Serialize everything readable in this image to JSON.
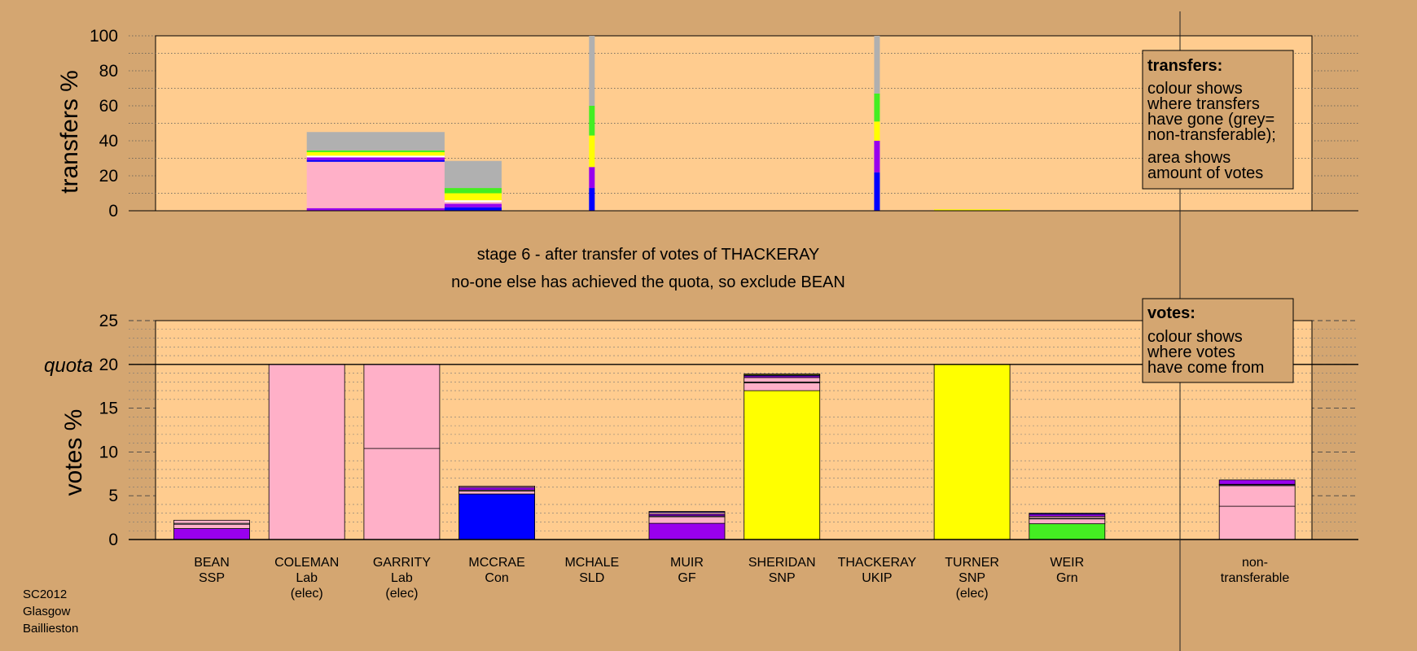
{
  "chart_data": [
    {
      "type": "bar",
      "stacked": true,
      "ylabel": "transfers %",
      "ylim": [
        0,
        100
      ],
      "yticks": [
        "100",
        "80",
        "60",
        "40",
        "20",
        "0"
      ],
      "grid": "dotted",
      "legend_box": {
        "title": "transfers:",
        "lines": [
          "colour shows",
          "where transfers",
          "have gone (grey=",
          "non-transferable);",
          "area shows",
          "amount of votes"
        ]
      },
      "bars": [
        {
          "x_from": 2,
          "x_to": 3.45,
          "segments": [
            {
              "color": "#9900ee",
              "value": 1.5
            },
            {
              "color": "#ffb0c8",
              "value": 26.5
            },
            {
              "color": "#0000ff",
              "value": 1
            },
            {
              "color": "#9900ee",
              "value": 1.5
            },
            {
              "color": "#ffffff",
              "value": 1
            },
            {
              "color": "#ffff00",
              "value": 2
            },
            {
              "color": "#44ee22",
              "value": 1
            },
            {
              "color": "#b0b0b0",
              "value": 10.5
            }
          ]
        },
        {
          "x_from": 3.45,
          "x_to": 4.05,
          "segments": [
            {
              "color": "#0000ff",
              "value": 2
            },
            {
              "color": "#9900ee",
              "value": 2
            },
            {
              "color": "#ffb0c8",
              "value": 1
            },
            {
              "color": "#ffffff",
              "value": 1
            },
            {
              "color": "#ffff00",
              "value": 4
            },
            {
              "color": "#44ee22",
              "value": 3
            },
            {
              "color": "#b0b0b0",
              "value": 15.5
            }
          ]
        },
        {
          "x_from": 4.97,
          "x_to": 5.03,
          "segments": [
            {
              "color": "#0000ff",
              "value": 13
            },
            {
              "color": "#9900ee",
              "value": 12
            },
            {
              "color": "#ffff00",
              "value": 18
            },
            {
              "color": "#44ee22",
              "value": 17
            },
            {
              "color": "#b0b0b0",
              "value": 40
            }
          ]
        },
        {
          "x_from": 7.97,
          "x_to": 8.03,
          "segments": [
            {
              "color": "#0000ff",
              "value": 22
            },
            {
              "color": "#9900ee",
              "value": 18
            },
            {
              "color": "#ffff00",
              "value": 11
            },
            {
              "color": "#44ee22",
              "value": 16
            },
            {
              "color": "#b0b0b0",
              "value": 33
            }
          ]
        },
        {
          "x_from": 8.6,
          "x_to": 9.4,
          "segments": [
            {
              "color": "#ffff00",
              "value": 0.8
            }
          ]
        }
      ]
    },
    {
      "type": "bar",
      "stacked": true,
      "ylabel": "votes %",
      "ylim": [
        0,
        25
      ],
      "yticks": [
        "25",
        "20",
        "15",
        "10",
        "5",
        "0"
      ],
      "quota": 20,
      "quota_label": "quota",
      "grid": "dashed",
      "legend_box": {
        "title": "votes:",
        "lines": [
          "colour shows",
          "where votes",
          "have come from"
        ]
      },
      "categories": [
        {
          "name": "BEAN",
          "party": "SSP",
          "elected": ""
        },
        {
          "name": "COLEMAN",
          "party": "Lab",
          "elected": "(elec)"
        },
        {
          "name": "GARRITY",
          "party": "Lab",
          "elected": "(elec)"
        },
        {
          "name": "MCCRAE",
          "party": "Con",
          "elected": ""
        },
        {
          "name": "MCHALE",
          "party": "SLD",
          "elected": ""
        },
        {
          "name": "MUIR",
          "party": "GF",
          "elected": ""
        },
        {
          "name": "SHERIDAN",
          "party": "SNP",
          "elected": ""
        },
        {
          "name": "THACKERAY",
          "party": "UKIP",
          "elected": ""
        },
        {
          "name": "TURNER",
          "party": "SNP",
          "elected": "(elec)"
        },
        {
          "name": "WEIR",
          "party": "Grn",
          "elected": ""
        },
        {
          "name": "",
          "party": "",
          "elected": ""
        },
        {
          "name": "non-",
          "party": "transferable",
          "elected": ""
        }
      ],
      "stacks": [
        [
          {
            "color": "#9900ee",
            "value": 1.25
          },
          {
            "color": "#ffb0c8",
            "value": 0.5
          },
          {
            "color": "#ffffff",
            "value": 0.1
          },
          {
            "color": "#ffb0c8",
            "value": 0.35
          }
        ],
        [
          {
            "color": "#ffb0c8",
            "value": 20
          }
        ],
        [
          {
            "color": "#ffb0c8",
            "value": 10.4
          },
          {
            "color": "#ffb0c8",
            "value": 9.6
          }
        ],
        [
          {
            "color": "#0000ff",
            "value": 5.2
          },
          {
            "color": "#ffb0c8",
            "value": 0.35
          },
          {
            "color": "#ffffff",
            "value": 0.1
          },
          {
            "color": "#9900ee",
            "value": 0.3
          },
          {
            "color": "#ffb0c8",
            "value": 0.15
          }
        ],
        [],
        [
          {
            "color": "#9900ee",
            "value": 1.85
          },
          {
            "color": "#ffb0c8",
            "value": 0.75
          },
          {
            "color": "#ffffff",
            "value": 0.1
          },
          {
            "color": "#9900ee",
            "value": 0.2
          },
          {
            "color": "#ffb0c8",
            "value": 0.2
          },
          {
            "color": "#0000ff",
            "value": 0.1
          }
        ],
        [
          {
            "color": "#ffff00",
            "value": 17
          },
          {
            "color": "#ffb0c8",
            "value": 0.9
          },
          {
            "color": "#ffffff",
            "value": 0.1
          },
          {
            "color": "#ffb0c8",
            "value": 0.5
          },
          {
            "color": "#9900ee",
            "value": 0.2
          },
          {
            "color": "#0000ff",
            "value": 0.1
          },
          {
            "color": "#ffff00",
            "value": 0.1
          }
        ],
        [],
        [
          {
            "color": "#ffff00",
            "value": 20
          }
        ],
        [
          {
            "color": "#44ee22",
            "value": 1.8
          },
          {
            "color": "#ffb0c8",
            "value": 0.55
          },
          {
            "color": "#ffffff",
            "value": 0.1
          },
          {
            "color": "#ffb0c8",
            "value": 0.2
          },
          {
            "color": "#9900ee",
            "value": 0.25
          },
          {
            "color": "#0000ff",
            "value": 0.1
          }
        ],
        [],
        [
          {
            "color": "#ffb0c8",
            "value": 3.8
          },
          {
            "color": "#ffb0c8",
            "value": 2.35
          },
          {
            "color": "#ffffff",
            "value": 0.1
          },
          {
            "color": "#ffff00",
            "value": 0.05
          },
          {
            "color": "#9900ee",
            "value": 0.5
          }
        ]
      ]
    }
  ],
  "stage_title": "stage 6 - after transfer of votes of THACKERAY",
  "stage_subtitle": "no-one else has achieved the quota, so exclude BEAN",
  "footer": [
    "SC2012",
    "Glasgow",
    "Baillieston"
  ],
  "colors": {
    "page_background": "#d4a671",
    "plot_background": "#ffcc8f",
    "ssp": "#9900ee",
    "lab": "#ffb0c8",
    "con": "#0000ff",
    "snp": "#ffff00",
    "grn": "#44ee22",
    "non_transferable": "#b0b0b0"
  }
}
